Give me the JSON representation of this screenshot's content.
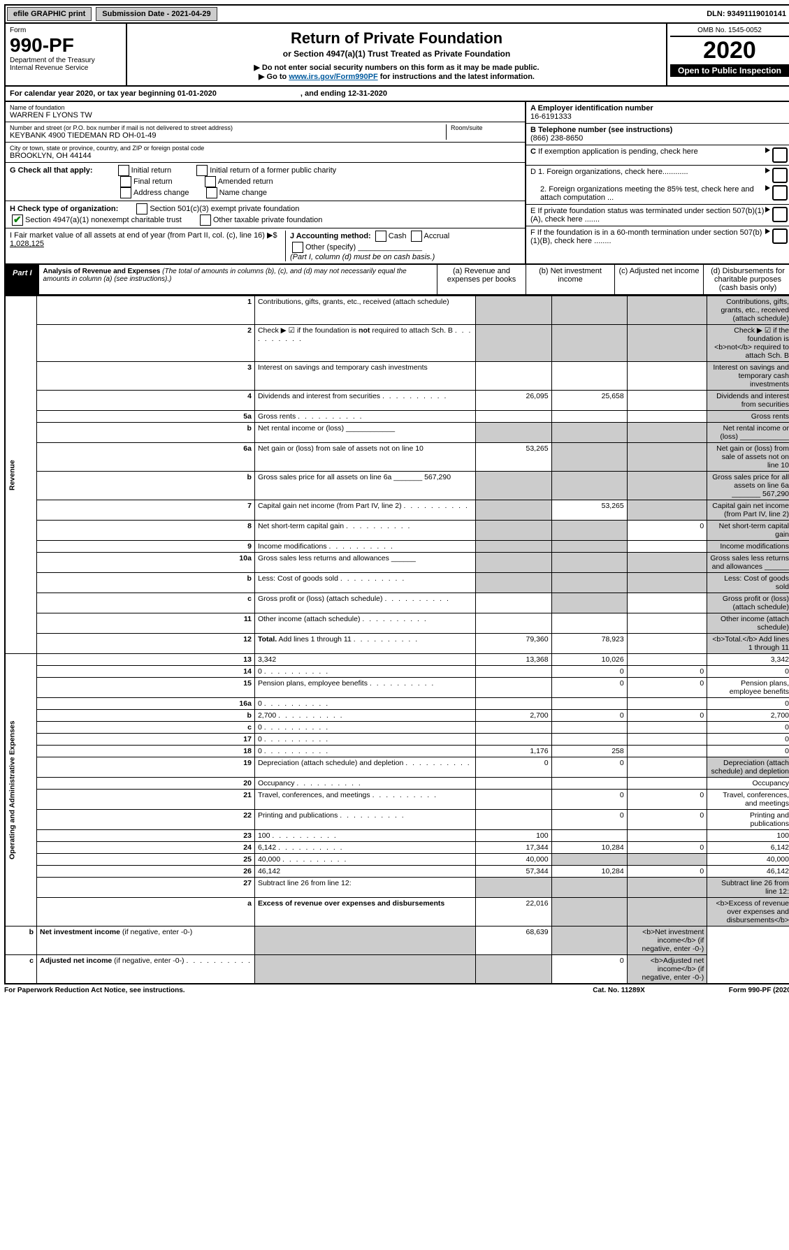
{
  "bar": {
    "efile": "efile GRAPHIC print",
    "subDate": "Submission Date - 2021-04-29",
    "dln": "DLN: 93491119010141"
  },
  "hdr": {
    "form": "Form",
    "num": "990-PF",
    "dept": "Department of the Treasury",
    "irs": "Internal Revenue Service",
    "title": "Return of Private Foundation",
    "sub": "or Section 4947(a)(1) Trust Treated as Private Foundation",
    "i1": "▶ Do not enter social security numbers on this form as it may be made public.",
    "i2": "▶ Go to ",
    "i2link": "www.irs.gov/Form990PF",
    "i2b": " for instructions and the latest information.",
    "omb": "OMB No. 1545-0052",
    "year": "2020",
    "open": "Open to Public Inspection"
  },
  "cal": {
    "a": "For calendar year 2020, or tax year beginning 01-01-2020",
    "b": ", and ending 12-31-2020"
  },
  "A": {
    "lbl": "Name of foundation",
    "name": "WARREN F LYONS TW",
    "addrLbl": "Number and street (or P.O. box number if mail is not delivered to street address)",
    "room": "Room/suite",
    "addr": "KEYBANK 4900 TIEDEMAN RD OH-01-49",
    "cityLbl": "City or town, state or province, country, and ZIP or foreign postal code",
    "city": "BROOKLYN, OH  44144"
  },
  "AR": {
    "ein": "A Employer identification number",
    "einV": "16-6191333",
    "tel": "B Telephone number (see instructions)",
    "telV": "(866) 238-8650",
    "c": "C If exemption application is pending, check here",
    "d1": "D 1. Foreign organizations, check here............",
    "d2": "2. Foreign organizations meeting the 85% test, check here and attach computation ...",
    "e": "E If private foundation status was terminated under section 507(b)(1)(A), check here .......",
    "f": "F  If the foundation is in a 60-month termination under section 507(b)(1)(B), check here ........"
  },
  "G": {
    "lbl": "G Check all that apply:",
    "o1": "Initial return",
    "o2": "Initial return of a former public charity",
    "o3": "Final return",
    "o4": "Amended return",
    "o5": "Address change",
    "o6": "Name change"
  },
  "H": {
    "lbl": "H Check type of organization:",
    "o1": "Section 501(c)(3) exempt private foundation",
    "o2": "Section 4947(a)(1) nonexempt charitable trust",
    "o3": "Other taxable private foundation"
  },
  "I": {
    "lbl": "I Fair market value of all assets at end of year (from Part II, col. (c), line 16) ▶$ ",
    "v": "1,028,125"
  },
  "J": {
    "lbl": "J Accounting method:",
    "o1": "Cash",
    "o2": "Accrual",
    "o3": "Other (specify)",
    "note": "(Part I, column (d) must be on cash basis.)"
  },
  "P1": {
    "tag": "Part I",
    "title": "Analysis of Revenue and Expenses",
    "note": "(The total of amounts in columns (b), (c), and (d) may not necessarily equal the amounts in column (a) (see instructions).)",
    "cols": {
      "a": "(a)   Revenue and expenses per books",
      "b": "(b)  Net investment income",
      "c": "(c)  Adjusted net income",
      "d": "(d)  Disbursements for charitable purposes (cash basis only)"
    }
  },
  "rows": [
    {
      "n": "1",
      "d": "Contributions, gifts, grants, etc., received (attach schedule)",
      "sA": 1,
      "sB": 1,
      "sC": 1,
      "sD": 1
    },
    {
      "n": "2",
      "d": "Check ▶ ☑ if the foundation is <b>not</b> required to attach Sch. B",
      "dots": 1,
      "sA": 1,
      "sB": 1,
      "sC": 1,
      "sD": 1
    },
    {
      "n": "3",
      "d": "Interest on savings and temporary cash investments",
      "sD": 1
    },
    {
      "n": "4",
      "d": "Dividends and interest from securities",
      "dots": 1,
      "a": "26,095",
      "b": "25,658",
      "sD": 1
    },
    {
      "n": "5a",
      "d": "Gross rents",
      "dots": 1,
      "sD": 1
    },
    {
      "n": "b",
      "d": "Net rental income or (loss) ____________",
      "sA": 1,
      "sB": 1,
      "sC": 1,
      "sD": 1
    },
    {
      "n": "6a",
      "d": "Net gain or (loss) from sale of assets not on line 10",
      "a": "53,265",
      "sB": 1,
      "sC": 1,
      "sD": 1
    },
    {
      "n": "b",
      "d": "Gross sales price for all assets on line 6a _______ 567,290",
      "sA": 1,
      "sB": 1,
      "sC": 1,
      "sD": 1
    },
    {
      "n": "7",
      "d": "Capital gain net income (from Part IV, line 2)",
      "dots": 1,
      "sA": 1,
      "b": "53,265",
      "sC": 1,
      "sD": 1
    },
    {
      "n": "8",
      "d": "Net short-term capital gain",
      "dots": 1,
      "sA": 1,
      "sB": 1,
      "c": "0",
      "sD": 1
    },
    {
      "n": "9",
      "d": "Income modifications",
      "dots": 1,
      "sA": 1,
      "sB": 1,
      "sD": 1
    },
    {
      "n": "10a",
      "d": "Gross sales less returns and allowances  ______",
      "sA": 1,
      "sB": 1,
      "sC": 1,
      "sD": 1
    },
    {
      "n": "b",
      "d": "Less: Cost of goods sold",
      "dots": 1,
      "sA": 1,
      "sB": 1,
      "sC": 1,
      "sD": 1
    },
    {
      "n": "c",
      "d": "Gross profit or (loss) (attach schedule)",
      "dots": 1,
      "sB": 1,
      "sD": 1
    },
    {
      "n": "11",
      "d": "Other income (attach schedule)",
      "dots": 1,
      "sD": 1
    },
    {
      "n": "12",
      "d": "<b>Total.</b> Add lines 1 through 11",
      "dots": 1,
      "a": "79,360",
      "b": "78,923",
      "sD": 1
    },
    {
      "n": "13",
      "d": "3,342",
      "a": "13,368",
      "b": "10,026"
    },
    {
      "n": "14",
      "d": "0",
      "dots": 1,
      "b": "0",
      "c": "0"
    },
    {
      "n": "15",
      "d": "Pension plans, employee benefits",
      "dots": 1,
      "b": "0",
      "c": "0"
    },
    {
      "n": "16a",
      "d": "0",
      "dots": 1
    },
    {
      "n": "b",
      "d": "2,700",
      "dots": 1,
      "a": "2,700",
      "b": "0",
      "c": "0"
    },
    {
      "n": "c",
      "d": "0",
      "dots": 1
    },
    {
      "n": "17",
      "d": "0",
      "dots": 1
    },
    {
      "n": "18",
      "d": "0",
      "dots": 1,
      "a": "1,176",
      "b": "258"
    },
    {
      "n": "19",
      "d": "Depreciation (attach schedule) and depletion",
      "dots": 1,
      "a": "0",
      "b": "0",
      "sD": 1
    },
    {
      "n": "20",
      "d": "Occupancy",
      "dots": 1
    },
    {
      "n": "21",
      "d": "Travel, conferences, and meetings",
      "dots": 1,
      "b": "0",
      "c": "0"
    },
    {
      "n": "22",
      "d": "Printing and publications",
      "dots": 1,
      "b": "0",
      "c": "0"
    },
    {
      "n": "23",
      "d": "100",
      "dots": 1,
      "a": "100"
    },
    {
      "n": "24",
      "d": "6,142",
      "dots": 1,
      "a": "17,344",
      "b": "10,284",
      "c": "0"
    },
    {
      "n": "25",
      "d": "40,000",
      "dots": 1,
      "a": "40,000",
      "sB": 1,
      "sC": 1
    },
    {
      "n": "26",
      "d": "46,142",
      "a": "57,344",
      "b": "10,284",
      "c": "0"
    },
    {
      "n": "27",
      "d": "Subtract line 26 from line 12:",
      "sA": 1,
      "sB": 1,
      "sC": 1,
      "sD": 1
    },
    {
      "n": "a",
      "d": "<b>Excess of revenue over expenses and disbursements</b>",
      "a": "22,016",
      "sB": 1,
      "sC": 1,
      "sD": 1
    },
    {
      "n": "b",
      "d": "<b>Net investment income</b> (if negative, enter -0-)",
      "sA": 1,
      "b": "68,639",
      "sC": 1,
      "sD": 1
    },
    {
      "n": "c",
      "d": "<b>Adjusted net income</b> (if negative, enter -0-)",
      "dots": 1,
      "sA": 1,
      "sB": 1,
      "c": "0",
      "sD": 1
    }
  ],
  "sections": {
    "rev": "Revenue",
    "exp": "Operating and Administrative Expenses"
  },
  "foot": {
    "a": "For Paperwork Reduction Act Notice, see instructions.",
    "b": "Cat. No. 11289X",
    "c": "Form 990-PF (2020)"
  }
}
